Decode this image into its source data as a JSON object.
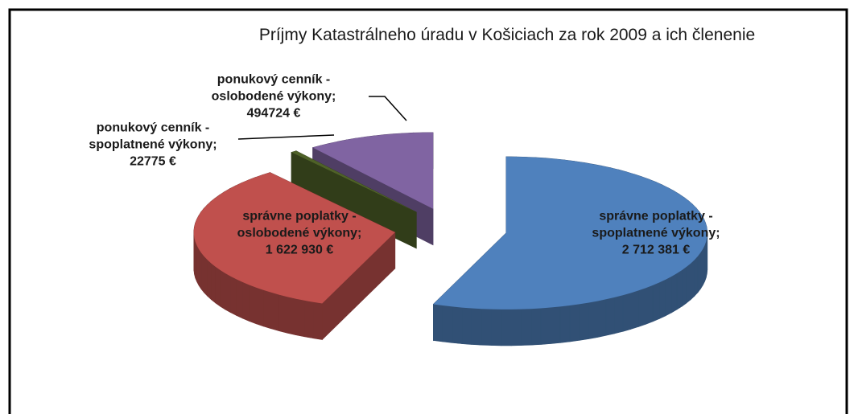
{
  "chart_data": {
    "type": "pie",
    "title": "Príjmy Katastrálneho úradu v Košiciach za rok 2009 a ich členenie",
    "categories": [
      "správne poplatky - spoplatnené výkony;",
      "správne poplatky - oslobodené výkony;",
      "ponukový cenník - spoplatnené výkony;",
      "ponukový cenník - oslobodené výkony;"
    ],
    "values": [
      2712381,
      1622930,
      22775,
      494724
    ],
    "value_labels": [
      "2 712 381 €",
      "1 622 930 €",
      "22775 €",
      "494724 €"
    ],
    "colors": [
      "#4f81bd",
      "#c0504d",
      "#4f6228",
      "#8064a2"
    ]
  }
}
